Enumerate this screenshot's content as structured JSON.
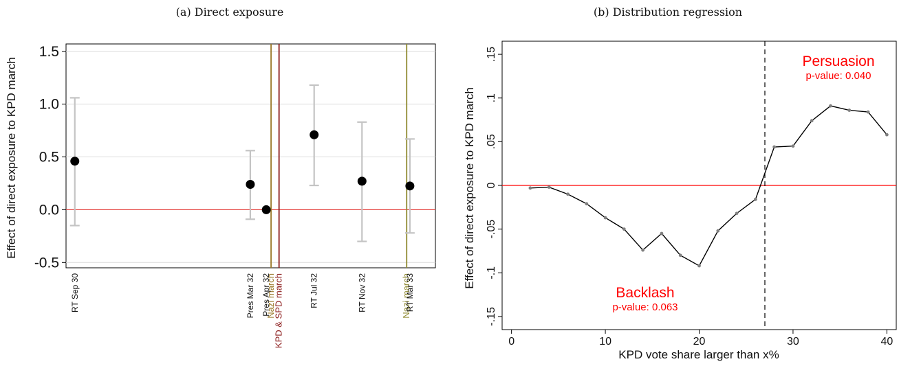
{
  "chart_data": [
    {
      "type": "scatter",
      "title": "(a) Direct exposure",
      "ylabel": "Effect of direct exposure to KPD march",
      "ylim": [
        -0.55,
        1.57
      ],
      "yticks": [
        -0.5,
        0.0,
        0.5,
        1.0,
        1.5
      ],
      "ytick_labels": [
        "-0.5",
        "0.0",
        "0.5",
        "1.0",
        "1.5"
      ],
      "grid": "horizontal",
      "reference_line": {
        "y": 0,
        "color": "#e53935"
      },
      "categories": [
        "RT Sep 30",
        "Pres Mar 32",
        "Pres Apr 32",
        "RT Jul 32",
        "RT Nov 32",
        "RT Mar 33"
      ],
      "x": [
        0,
        11,
        12,
        15,
        18,
        21
      ],
      "xlim": [
        -0.55,
        22.6
      ],
      "estimates": [
        0.46,
        0.24,
        0.0,
        0.71,
        0.27,
        0.225
      ],
      "ci_low": [
        -0.15,
        -0.09,
        null,
        0.23,
        -0.3,
        -0.22
      ],
      "ci_high": [
        1.06,
        0.56,
        null,
        1.18,
        0.83,
        0.67
      ],
      "marker_color": "#000000",
      "ci_color": "#c4c4c4",
      "events": [
        {
          "x": 12.3,
          "label": "Nazi march",
          "color": "#9b7a2b"
        },
        {
          "x": 12.8,
          "label": "KPD & SPD march",
          "color": "#8b1a1a"
        },
        {
          "x": 20.8,
          "label": "Nazi march",
          "color": "#8f8a30"
        }
      ]
    },
    {
      "type": "line",
      "title": "(b) Distribution regression",
      "xlabel": "KPD vote share larger than x%",
      "ylabel": "Effect of direct exposure to KPD march",
      "xlim": [
        -1,
        41
      ],
      "ylim": [
        -0.165,
        0.165
      ],
      "xticks": [
        0,
        10,
        20,
        30,
        40
      ],
      "yticks": [
        -0.15,
        -0.1,
        -0.05,
        0,
        0.05,
        0.1,
        0.15
      ],
      "ytick_labels": [
        "-.15",
        "-.1",
        "-.05",
        "0",
        ".05",
        ".1",
        ".15"
      ],
      "grid": "none",
      "x": [
        2,
        4,
        6,
        8,
        10,
        12,
        14,
        16,
        18,
        20,
        22,
        24,
        26,
        28,
        30,
        32,
        34,
        36,
        38,
        40
      ],
      "y": [
        -0.003,
        -0.002,
        -0.01,
        -0.021,
        -0.037,
        -0.05,
        -0.074,
        -0.055,
        -0.08,
        -0.092,
        -0.052,
        -0.032,
        -0.016,
        0.044,
        0.045,
        0.074,
        0.091,
        0.086,
        0.084,
        0.058
      ],
      "line_color": "#000000",
      "point_color": "#7f7f7f",
      "reference_line": {
        "y": 0,
        "color": "#ff0000"
      },
      "threshold_line": {
        "x": 27,
        "style": "dashed"
      },
      "annotations": [
        {
          "label": "Persuasion",
          "detail": "p-value: 0.040"
        },
        {
          "label": "Backlash",
          "detail": "p-value: 0.063"
        }
      ]
    }
  ]
}
